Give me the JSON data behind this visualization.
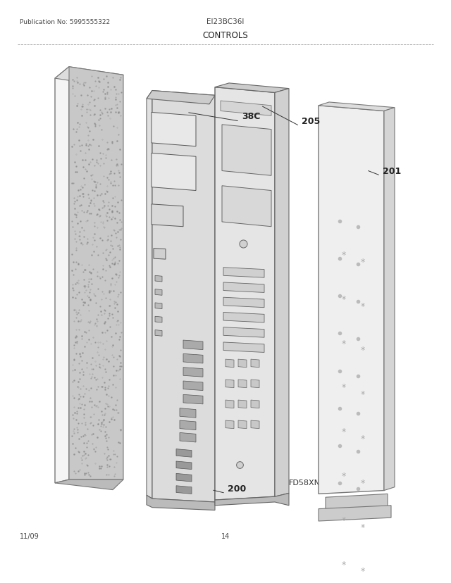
{
  "pub_no": "Publication No: 5995555322",
  "model": "EI23BC36I",
  "section": "CONTROLS",
  "diagram_code": "FD58XNDAAA0",
  "date": "11/09",
  "page": "14",
  "bg_color": "#ffffff",
  "line_color": "#333333"
}
